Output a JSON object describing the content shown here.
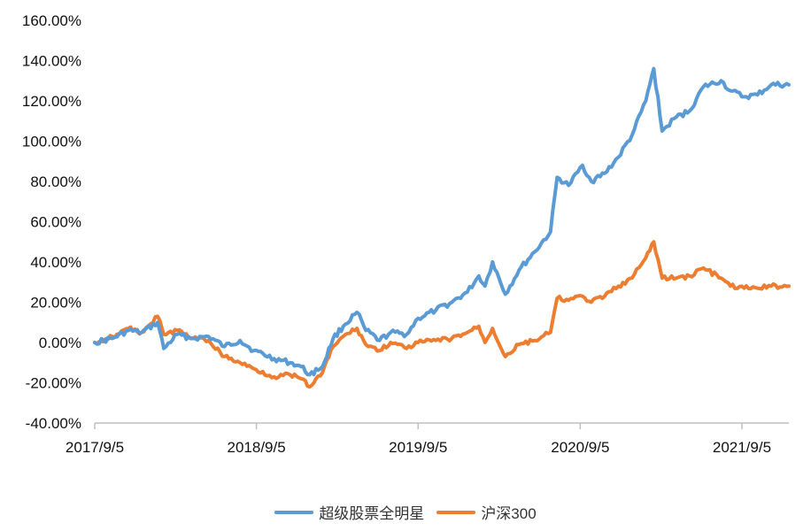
{
  "chart_data": {
    "type": "line",
    "title": "",
    "xlabel": "",
    "ylabel": "",
    "ylim": [
      -0.4,
      1.6
    ],
    "yticks": [
      -0.4,
      -0.2,
      0.0,
      0.2,
      0.4,
      0.6,
      0.8,
      1.0,
      1.2,
      1.4,
      1.6
    ],
    "ytick_labels": [
      "-40.00%",
      "-20.00%",
      "0.00%",
      "20.00%",
      "40.00%",
      "60.00%",
      "80.00%",
      "100.00%",
      "120.00%",
      "140.00%",
      "160.00%"
    ],
    "xlim": [
      "2017-09-05",
      "2021-12-20"
    ],
    "xticks": [
      "2017-09-05",
      "2018-09-05",
      "2019-09-05",
      "2020-09-05",
      "2021-09-05"
    ],
    "xtick_labels": [
      "2017/9/5",
      "2018/9/5",
      "2019/9/5",
      "2020/9/5",
      "2021/9/5"
    ],
    "grid": false,
    "legend_position": "bottom",
    "series": [
      {
        "name": "超级股票全明星",
        "color": "#5B9BD5",
        "points": [
          [
            "2017-09-05",
            0.0
          ],
          [
            "2017-10-15",
            0.02
          ],
          [
            "2017-11-20",
            0.06
          ],
          [
            "2017-12-20",
            0.05
          ],
          [
            "2018-01-25",
            0.1
          ],
          [
            "2018-02-08",
            -0.03
          ],
          [
            "2018-03-10",
            0.04
          ],
          [
            "2018-04-15",
            0.02
          ],
          [
            "2018-05-20",
            0.03
          ],
          [
            "2018-06-25",
            -0.02
          ],
          [
            "2018-07-30",
            0.01
          ],
          [
            "2018-08-30",
            -0.04
          ],
          [
            "2018-10-15",
            -0.08
          ],
          [
            "2018-11-20",
            -0.1
          ],
          [
            "2018-12-15",
            -0.12
          ],
          [
            "2019-01-03",
            -0.16
          ],
          [
            "2019-02-01",
            -0.12
          ],
          [
            "2019-02-25",
            0.02
          ],
          [
            "2019-03-20",
            0.08
          ],
          [
            "2019-04-20",
            0.15
          ],
          [
            "2019-05-10",
            0.06
          ],
          [
            "2019-06-10",
            0.01
          ],
          [
            "2019-07-05",
            0.05
          ],
          [
            "2019-08-10",
            0.04
          ],
          [
            "2019-09-05",
            0.12
          ],
          [
            "2019-10-15",
            0.16
          ],
          [
            "2019-11-20",
            0.2
          ],
          [
            "2019-12-25",
            0.25
          ],
          [
            "2020-01-20",
            0.33
          ],
          [
            "2020-02-03",
            0.28
          ],
          [
            "2020-02-20",
            0.4
          ],
          [
            "2020-03-20",
            0.24
          ],
          [
            "2020-04-20",
            0.36
          ],
          [
            "2020-05-25",
            0.45
          ],
          [
            "2020-06-30",
            0.55
          ],
          [
            "2020-07-15",
            0.82
          ],
          [
            "2020-08-10",
            0.78
          ],
          [
            "2020-09-10",
            0.88
          ],
          [
            "2020-09-30",
            0.8
          ],
          [
            "2020-10-30",
            0.84
          ],
          [
            "2020-11-30",
            0.92
          ],
          [
            "2020-12-31",
            1.03
          ],
          [
            "2021-01-31",
            1.2
          ],
          [
            "2021-02-18",
            1.36
          ],
          [
            "2021-03-09",
            1.05
          ],
          [
            "2021-04-10",
            1.12
          ],
          [
            "2021-05-10",
            1.15
          ],
          [
            "2021-06-10",
            1.27
          ],
          [
            "2021-07-20",
            1.3
          ],
          [
            "2021-08-10",
            1.25
          ],
          [
            "2021-09-10",
            1.22
          ],
          [
            "2021-10-10",
            1.23
          ],
          [
            "2021-11-10",
            1.28
          ],
          [
            "2021-12-20",
            1.28
          ]
        ]
      },
      {
        "name": "沪深300",
        "color": "#ED7D31",
        "points": [
          [
            "2017-09-05",
            0.0
          ],
          [
            "2017-10-15",
            0.03
          ],
          [
            "2017-11-20",
            0.07
          ],
          [
            "2017-12-20",
            0.05
          ],
          [
            "2018-01-25",
            0.13
          ],
          [
            "2018-02-08",
            0.04
          ],
          [
            "2018-03-10",
            0.06
          ],
          [
            "2018-04-15",
            0.02
          ],
          [
            "2018-05-20",
            0.01
          ],
          [
            "2018-06-25",
            -0.07
          ],
          [
            "2018-07-30",
            -0.1
          ],
          [
            "2018-08-30",
            -0.13
          ],
          [
            "2018-10-15",
            -0.17
          ],
          [
            "2018-11-20",
            -0.16
          ],
          [
            "2018-12-15",
            -0.18
          ],
          [
            "2019-01-03",
            -0.22
          ],
          [
            "2019-02-01",
            -0.15
          ],
          [
            "2019-02-25",
            -0.02
          ],
          [
            "2019-03-20",
            0.03
          ],
          [
            "2019-04-20",
            0.07
          ],
          [
            "2019-05-10",
            -0.01
          ],
          [
            "2019-06-10",
            -0.04
          ],
          [
            "2019-07-05",
            0.0
          ],
          [
            "2019-08-10",
            -0.03
          ],
          [
            "2019-09-05",
            0.0
          ],
          [
            "2019-10-15",
            0.01
          ],
          [
            "2019-11-20",
            0.02
          ],
          [
            "2019-12-25",
            0.05
          ],
          [
            "2020-01-20",
            0.08
          ],
          [
            "2020-02-03",
            0.0
          ],
          [
            "2020-02-20",
            0.07
          ],
          [
            "2020-03-20",
            -0.07
          ],
          [
            "2020-04-20",
            -0.01
          ],
          [
            "2020-05-25",
            0.01
          ],
          [
            "2020-06-30",
            0.05
          ],
          [
            "2020-07-15",
            0.22
          ],
          [
            "2020-08-10",
            0.21
          ],
          [
            "2020-09-10",
            0.23
          ],
          [
            "2020-09-30",
            0.2
          ],
          [
            "2020-10-30",
            0.23
          ],
          [
            "2020-11-30",
            0.28
          ],
          [
            "2020-12-31",
            0.32
          ],
          [
            "2021-01-31",
            0.42
          ],
          [
            "2021-02-18",
            0.5
          ],
          [
            "2021-03-09",
            0.32
          ],
          [
            "2021-04-10",
            0.32
          ],
          [
            "2021-05-10",
            0.33
          ],
          [
            "2021-06-10",
            0.37
          ],
          [
            "2021-07-20",
            0.32
          ],
          [
            "2021-08-10",
            0.28
          ],
          [
            "2021-09-10",
            0.27
          ],
          [
            "2021-10-10",
            0.27
          ],
          [
            "2021-11-10",
            0.28
          ],
          [
            "2021-12-20",
            0.28
          ]
        ]
      }
    ]
  }
}
